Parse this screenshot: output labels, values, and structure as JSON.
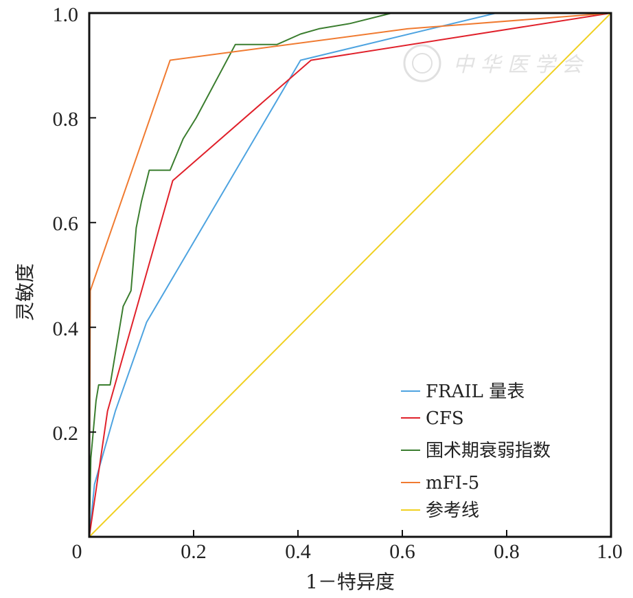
{
  "chart_data": {
    "type": "line",
    "title": "",
    "xlabel": "1－特异度",
    "ylabel": "灵敏度",
    "xlim": [
      0,
      1
    ],
    "ylim": [
      0,
      1
    ],
    "x_ticks": [
      "0",
      "0.2",
      "0.4",
      "0.6",
      "0.8",
      "1.0"
    ],
    "y_ticks": [
      "0.2",
      "0.4",
      "0.6",
      "0.8",
      "1.0"
    ],
    "grid": false,
    "legend_position": "bottom-right",
    "series": [
      {
        "name": "FRAIL 量表",
        "color": "#4da3e0",
        "points": [
          [
            0,
            0
          ],
          [
            0.01,
            0.1
          ],
          [
            0.05,
            0.24
          ],
          [
            0.11,
            0.41
          ],
          [
            0.405,
            0.91
          ],
          [
            0.78,
            1.0
          ],
          [
            1.0,
            1.0
          ]
        ]
      },
      {
        "name": "CFS",
        "color": "#e0202a",
        "points": [
          [
            0,
            0
          ],
          [
            0.035,
            0.24
          ],
          [
            0.16,
            0.68
          ],
          [
            0.425,
            0.91
          ],
          [
            1.0,
            1.0
          ]
        ]
      },
      {
        "name": "围术期衰弱指数",
        "color": "#3a7d2e",
        "points": [
          [
            0,
            0
          ],
          [
            0.003,
            0.15
          ],
          [
            0.013,
            0.26
          ],
          [
            0.018,
            0.29
          ],
          [
            0.04,
            0.29
          ],
          [
            0.05,
            0.35
          ],
          [
            0.065,
            0.44
          ],
          [
            0.08,
            0.47
          ],
          [
            0.09,
            0.59
          ],
          [
            0.1,
            0.64
          ],
          [
            0.115,
            0.7
          ],
          [
            0.14,
            0.7
          ],
          [
            0.155,
            0.7
          ],
          [
            0.18,
            0.76
          ],
          [
            0.205,
            0.8
          ],
          [
            0.28,
            0.94
          ],
          [
            0.36,
            0.94
          ],
          [
            0.405,
            0.96
          ],
          [
            0.44,
            0.97
          ],
          [
            0.5,
            0.98
          ],
          [
            0.58,
            1.0
          ],
          [
            1.0,
            1.0
          ]
        ]
      },
      {
        "name": "mFI-5",
        "color": "#f07a30",
        "points": [
          [
            0,
            0
          ],
          [
            0.002,
            0.47
          ],
          [
            0.155,
            0.91
          ],
          [
            0.61,
            0.97
          ],
          [
            1.0,
            1.0
          ]
        ]
      },
      {
        "name": "参考线",
        "color": "#f0d020",
        "points": [
          [
            0,
            0
          ],
          [
            1.0,
            1.0
          ]
        ]
      }
    ]
  }
}
